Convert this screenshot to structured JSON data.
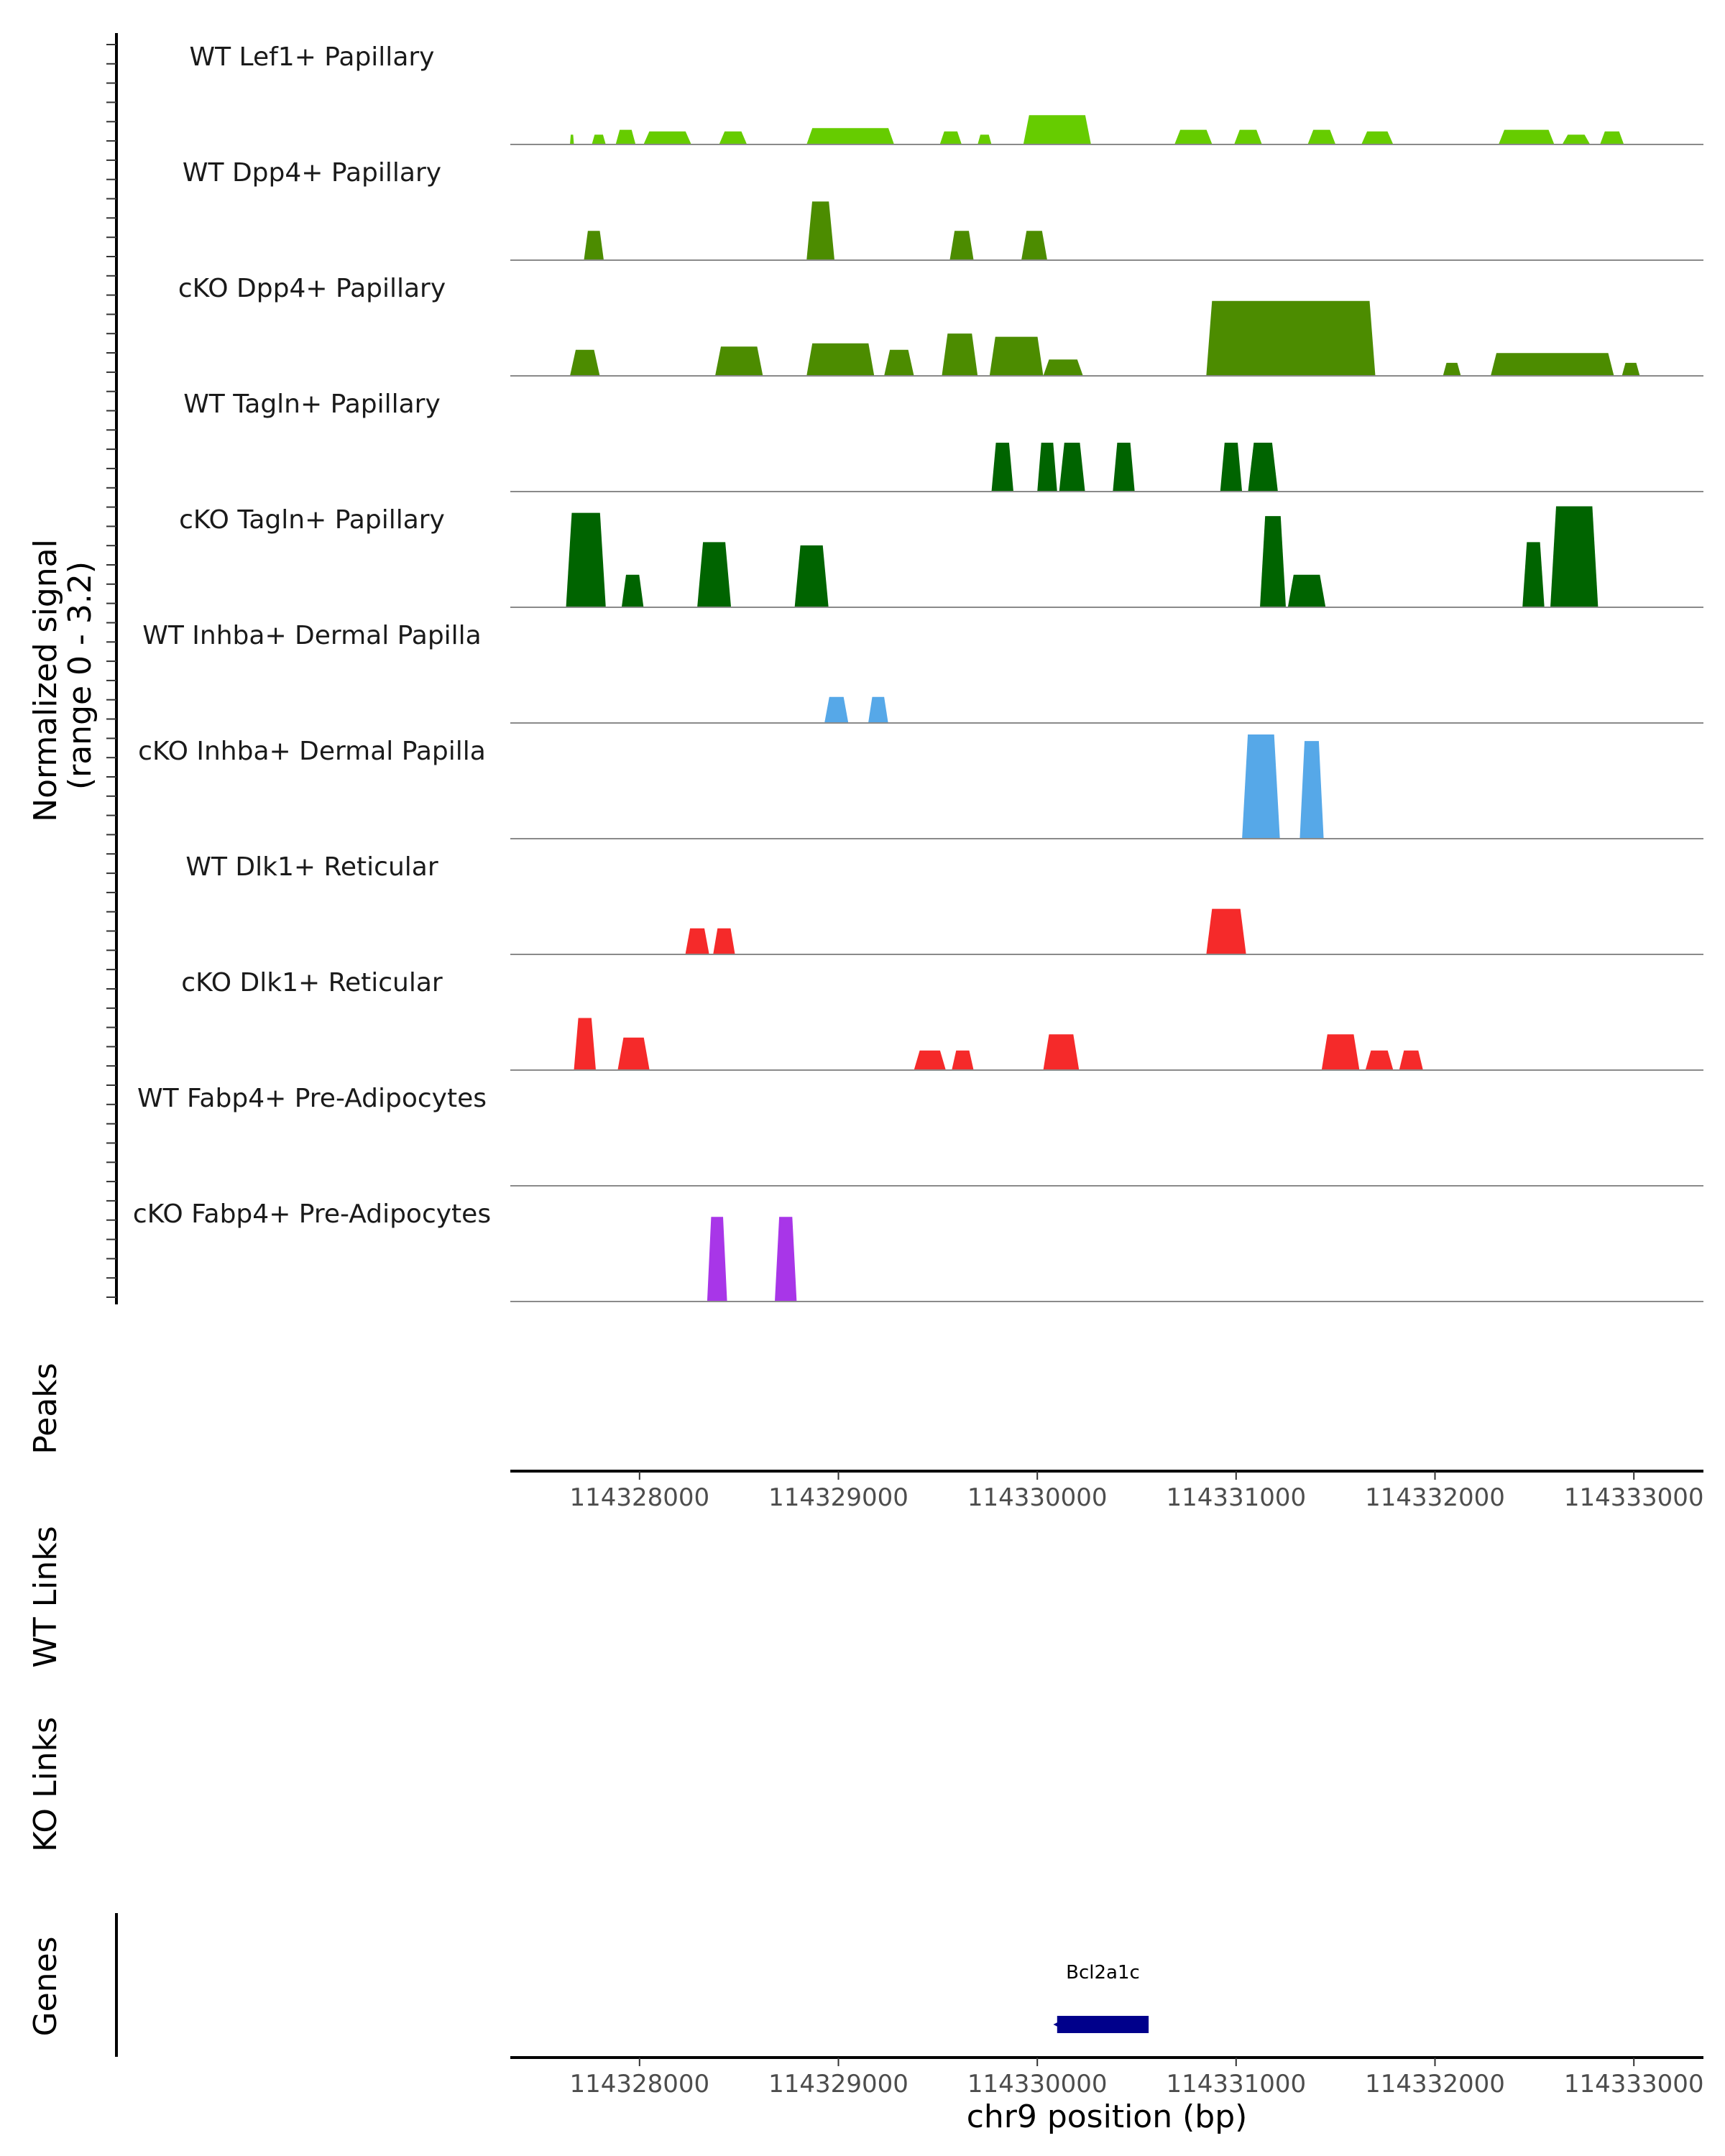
{
  "chart_data": {
    "type": "area",
    "region": "chr9",
    "xlabel": "chr9 position (bp)",
    "xlim": [
      114327350,
      114333350
    ],
    "x_ticks": [
      114328000,
      114329000,
      114330000,
      114331000,
      114332000,
      114333000
    ],
    "x_tick_labels": [
      "114328000",
      "114329000",
      "114330000",
      "114331000",
      "114332000",
      "114333000"
    ],
    "signal_ylabel_line1": "Normalized signal",
    "signal_ylabel_line2": "(range 0 - 3.2)",
    "ylim": [
      0,
      3.2
    ],
    "tracks": [
      {
        "label": "WT Lef1+ Papillary",
        "color": "#66cc00",
        "peaks": [
          [
            114327650,
            114327670,
            0.3
          ],
          [
            114327760,
            114327830,
            0.3
          ],
          [
            114327880,
            114327980,
            0.45
          ],
          [
            114328020,
            114328260,
            0.4
          ],
          [
            114328400,
            114328540,
            0.4
          ],
          [
            114328840,
            114329280,
            0.5
          ],
          [
            114329510,
            114329620,
            0.4
          ],
          [
            114329700,
            114329770,
            0.3
          ],
          [
            114329930,
            114330270,
            0.9
          ],
          [
            114330690,
            114330880,
            0.45
          ],
          [
            114330990,
            114331130,
            0.45
          ],
          [
            114331360,
            114331500,
            0.45
          ],
          [
            114331630,
            114331790,
            0.4
          ],
          [
            114332320,
            114332600,
            0.45
          ],
          [
            114332640,
            114332780,
            0.3
          ],
          [
            114332830,
            114332950,
            0.4
          ]
        ]
      },
      {
        "label": "WT Dpp4+ Papillary",
        "color": "#4c8c00",
        "peaks": [
          [
            114327720,
            114327820,
            0.9
          ],
          [
            114328840,
            114328980,
            1.8
          ],
          [
            114329560,
            114329680,
            0.9
          ],
          [
            114329920,
            114330050,
            0.9
          ]
        ]
      },
      {
        "label": "cKO Dpp4+ Papillary",
        "color": "#4c8c00",
        "peaks": [
          [
            114327650,
            114327800,
            0.8
          ],
          [
            114328380,
            114328620,
            0.9
          ],
          [
            114328840,
            114329180,
            1.0
          ],
          [
            114329230,
            114329380,
            0.8
          ],
          [
            114329520,
            114329700,
            1.3
          ],
          [
            114329760,
            114330030,
            1.2
          ],
          [
            114330030,
            114330230,
            0.5
          ],
          [
            114330850,
            114331700,
            2.3
          ],
          [
            114332040,
            114332130,
            0.4
          ],
          [
            114332280,
            114332900,
            0.7
          ],
          [
            114332940,
            114333030,
            0.4
          ]
        ]
      },
      {
        "label": "WT Tagln+ Papillary",
        "color": "#006400",
        "peaks": [
          [
            114329770,
            114329880,
            1.5
          ],
          [
            114330000,
            114330100,
            1.5
          ],
          [
            114330110,
            114330240,
            1.5
          ],
          [
            114330380,
            114330490,
            1.5
          ],
          [
            114330920,
            114331030,
            1.5
          ],
          [
            114331060,
            114331210,
            1.5
          ]
        ]
      },
      {
        "label": "cKO Tagln+ Papillary",
        "color": "#006400",
        "peaks": [
          [
            114327630,
            114327830,
            2.9
          ],
          [
            114327910,
            114328020,
            1.0
          ],
          [
            114328290,
            114328460,
            2.0
          ],
          [
            114328780,
            114328950,
            1.9
          ],
          [
            114331120,
            114331250,
            2.8
          ],
          [
            114331260,
            114331450,
            1.0
          ],
          [
            114332440,
            114332550,
            2.0
          ],
          [
            114332580,
            114332820,
            3.1
          ]
        ]
      },
      {
        "label": "WT Inhba+ Dermal Papilla",
        "color": "#56a8e8",
        "peaks": [
          [
            114328930,
            114329050,
            0.8
          ],
          [
            114329150,
            114329250,
            0.8
          ]
        ]
      },
      {
        "label": "cKO Inhba+ Dermal Papilla",
        "color": "#56a8e8",
        "peaks": [
          [
            114331030,
            114331220,
            3.2
          ],
          [
            114331320,
            114331440,
            3.0
          ]
        ]
      },
      {
        "label": "WT Dlk1+ Reticular",
        "color": "#f52a2a",
        "peaks": [
          [
            114328230,
            114328350,
            0.8
          ],
          [
            114328370,
            114328480,
            0.8
          ],
          [
            114330850,
            114331050,
            1.4
          ]
        ]
      },
      {
        "label": "cKO Dlk1+ Reticular",
        "color": "#f52a2a",
        "peaks": [
          [
            114327670,
            114327780,
            1.6
          ],
          [
            114327890,
            114328050,
            1.0
          ],
          [
            114329380,
            114329540,
            0.6
          ],
          [
            114329570,
            114329680,
            0.6
          ],
          [
            114330030,
            114330210,
            1.1
          ],
          [
            114331430,
            114331620,
            1.1
          ],
          [
            114331650,
            114331790,
            0.6
          ],
          [
            114331820,
            114331940,
            0.6
          ]
        ]
      },
      {
        "label": "WT Fabp4+ Pre-Adipocytes",
        "color": "#a836e8",
        "peaks": []
      },
      {
        "label": "cKO Fabp4+ Pre-Adipocytes",
        "color": "#a836e8",
        "peaks": [
          [
            114328340,
            114328440,
            2.6
          ],
          [
            114328680,
            114328790,
            2.6
          ]
        ]
      }
    ],
    "peaks_label": "Peaks",
    "wt_links_label": "WT Links",
    "ko_links_label": "KO Links",
    "genes_label": "Genes",
    "genes": [
      {
        "name": "Bcl2a1c",
        "start": 114330100,
        "end": 114330560,
        "strand": "-",
        "color": "#00008b"
      }
    ]
  }
}
